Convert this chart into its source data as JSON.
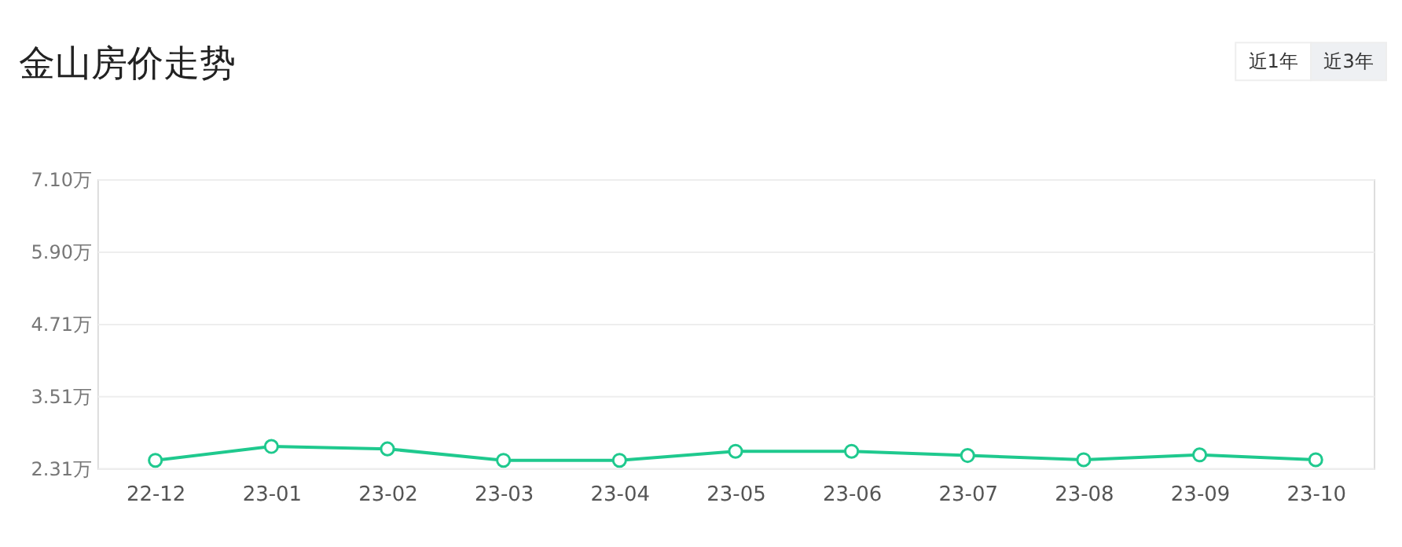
{
  "chart_data": {
    "type": "line",
    "title": "金山房价走势",
    "annotations": [
      "近1年",
      "近3年"
    ],
    "categories": [
      "22-12",
      "23-01",
      "23-02",
      "23-03",
      "23-04",
      "23-05",
      "23-06",
      "23-07",
      "23-08",
      "23-09",
      "23-10"
    ],
    "series": [
      {
        "color": "#1fc98e",
        "values": [
          2.44,
          2.67,
          2.63,
          2.44,
          2.44,
          2.59,
          2.59,
          2.52,
          2.45,
          2.53,
          2.45
        ]
      }
    ],
    "ylim": [
      2.31,
      7.1
    ],
    "yticks": [
      {
        "value": 2.31,
        "label": "2.31万"
      },
      {
        "value": 3.51,
        "label": "3.51万"
      },
      {
        "value": 4.71,
        "label": "4.71万"
      },
      {
        "value": 5.9,
        "label": "5.90万"
      },
      {
        "value": 7.1,
        "label": "7.10万"
      }
    ],
    "grid": "y",
    "marker": "circle",
    "line_style": "solid"
  }
}
